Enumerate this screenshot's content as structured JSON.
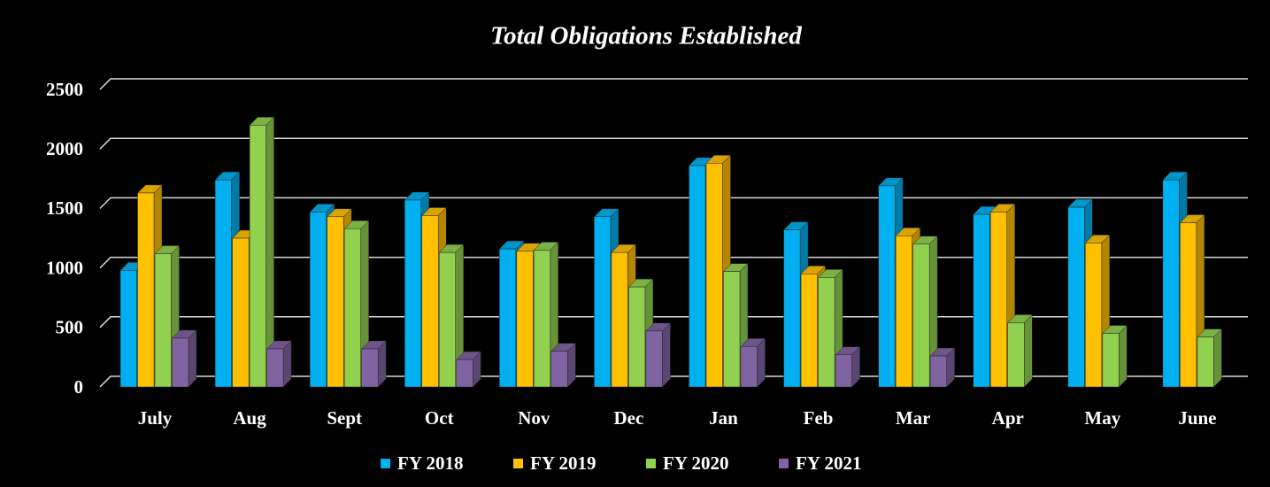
{
  "chart_data": {
    "type": "bar3d",
    "title": "Total Obligations Established",
    "categories": [
      "July",
      "Aug",
      "Sept",
      "Oct",
      "Nov",
      "Dec",
      "Jan",
      "Feb",
      "Mar",
      "Apr",
      "May",
      "June"
    ],
    "series": [
      {
        "name": "FY 2018",
        "color": "#00b0f0",
        "values": [
          980,
          1740,
          1470,
          1570,
          1160,
          1430,
          1860,
          1320,
          1690,
          1450,
          1510,
          1740
        ]
      },
      {
        "name": "FY 2019",
        "color": "#ffc000",
        "values": [
          1630,
          1250,
          1430,
          1440,
          1140,
          1130,
          1880,
          950,
          1270,
          1470,
          1210,
          1380
        ]
      },
      {
        "name": "FY 2020",
        "color": "#92d050",
        "values": [
          1120,
          2200,
          1330,
          1130,
          1150,
          840,
          970,
          920,
          1200,
          540,
          450,
          420
        ]
      },
      {
        "name": "FY 2021",
        "color": "#8064a2",
        "values": [
          410,
          320,
          320,
          230,
          300,
          470,
          340,
          270,
          260,
          null,
          null,
          null
        ]
      }
    ],
    "ylim": [
      0,
      2500
    ],
    "yticks": [
      0,
      500,
      1000,
      1500,
      2000,
      2500
    ],
    "grid": true,
    "legend": "bottom"
  }
}
